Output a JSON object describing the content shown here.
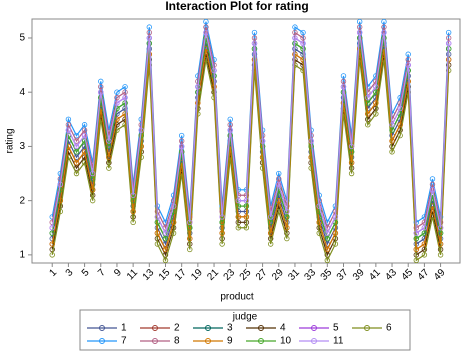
{
  "chart_data": {
    "type": "line",
    "title": "Interaction Plot for rating",
    "x_label": "product",
    "y_label": "rating",
    "legend_title": "judge",
    "x": [
      1,
      2,
      3,
      4,
      5,
      6,
      7,
      8,
      9,
      10,
      11,
      12,
      13,
      14,
      15,
      16,
      17,
      18,
      19,
      20,
      21,
      22,
      23,
      24,
      25,
      26,
      27,
      28,
      29,
      30,
      31,
      32,
      33,
      34,
      35,
      36,
      37,
      38,
      39,
      40,
      41,
      42,
      43,
      44,
      45,
      46,
      47,
      48,
      49,
      50
    ],
    "xlim": [
      -1.5,
      51.4
    ],
    "xticks": [
      1,
      3,
      5,
      7,
      9,
      11,
      13,
      15,
      17,
      19,
      21,
      23,
      25,
      27,
      29,
      31,
      33,
      35,
      37,
      39,
      41,
      43,
      45,
      47,
      49
    ],
    "ylim": [
      0.85,
      5.35
    ],
    "yticks": [
      1,
      2,
      3,
      4,
      5
    ],
    "series": [
      {
        "name": "1",
        "color": "#445694",
        "values": [
          1.3,
          2.1,
          3.1,
          2.8,
          3.0,
          2.3,
          3.8,
          2.9,
          3.6,
          3.7,
          1.9,
          3.1,
          4.8,
          1.5,
          1.2,
          1.7,
          2.8,
          1.4,
          3.9,
          4.9,
          4.2,
          1.5,
          3.1,
          1.8,
          1.8,
          4.7,
          2.9,
          1.5,
          2.1,
          1.6,
          4.8,
          4.7,
          2.9,
          1.7,
          1.2,
          1.5,
          3.9,
          2.8,
          4.9,
          3.7,
          3.9,
          4.9,
          3.2,
          3.5,
          4.3,
          1.2,
          1.3,
          2.0,
          1.3,
          4.7
        ]
      },
      {
        "name": "2",
        "color": "#A23A2E",
        "values": [
          1.2,
          2.0,
          3.0,
          2.7,
          2.9,
          2.2,
          3.7,
          2.8,
          3.5,
          3.6,
          1.8,
          3.0,
          4.7,
          1.4,
          1.1,
          1.6,
          2.7,
          1.3,
          3.8,
          4.8,
          4.1,
          1.4,
          3.0,
          1.7,
          1.7,
          4.6,
          2.8,
          1.4,
          2.0,
          1.5,
          4.7,
          4.6,
          2.8,
          1.6,
          1.1,
          1.4,
          3.8,
          2.7,
          4.8,
          3.6,
          3.8,
          4.8,
          3.1,
          3.4,
          4.2,
          1.1,
          1.2,
          1.9,
          1.2,
          4.6
        ]
      },
      {
        "name": "3",
        "color": "#01665E",
        "values": [
          1.4,
          2.2,
          3.2,
          2.9,
          3.1,
          2.4,
          3.9,
          3.0,
          3.7,
          3.8,
          2.0,
          3.2,
          4.9,
          1.6,
          1.3,
          1.8,
          2.9,
          1.5,
          4.0,
          5.0,
          4.3,
          1.6,
          3.2,
          1.9,
          1.9,
          4.8,
          3.0,
          1.6,
          2.2,
          1.7,
          4.9,
          4.8,
          3.0,
          1.8,
          1.3,
          1.6,
          4.0,
          2.9,
          5.0,
          3.8,
          4.0,
          5.0,
          3.3,
          3.6,
          4.4,
          1.3,
          1.4,
          2.1,
          1.4,
          4.8
        ]
      },
      {
        "name": "4",
        "color": "#543005",
        "values": [
          1.1,
          1.9,
          2.9,
          2.6,
          2.8,
          2.1,
          3.6,
          2.7,
          3.4,
          3.5,
          1.7,
          2.9,
          4.6,
          1.3,
          1.0,
          1.5,
          2.6,
          1.2,
          3.7,
          4.7,
          4.0,
          1.3,
          2.9,
          1.6,
          1.6,
          4.5,
          2.7,
          1.3,
          1.9,
          1.4,
          4.6,
          4.5,
          2.7,
          1.5,
          1.0,
          1.3,
          3.7,
          2.6,
          4.7,
          3.5,
          3.7,
          4.7,
          3.0,
          3.3,
          4.1,
          1.0,
          1.1,
          1.8,
          1.1,
          4.5
        ]
      },
      {
        "name": "5",
        "color": "#9D3CDB",
        "values": [
          1.5,
          2.3,
          3.3,
          3.0,
          3.2,
          2.5,
          4.0,
          3.1,
          3.8,
          3.9,
          2.1,
          3.3,
          5.0,
          1.7,
          1.4,
          1.9,
          3.0,
          1.6,
          4.1,
          5.1,
          4.4,
          1.7,
          3.3,
          2.0,
          2.0,
          4.9,
          3.1,
          1.7,
          2.3,
          1.8,
          5.0,
          4.9,
          3.1,
          1.9,
          1.4,
          1.7,
          4.1,
          3.0,
          5.1,
          3.9,
          4.1,
          5.1,
          3.4,
          3.7,
          4.5,
          1.4,
          1.5,
          2.2,
          1.5,
          4.9
        ]
      },
      {
        "name": "6",
        "color": "#7F8E1F",
        "values": [
          1.0,
          1.8,
          2.8,
          2.5,
          2.7,
          2.0,
          3.5,
          2.6,
          3.3,
          3.4,
          1.6,
          2.8,
          4.5,
          1.2,
          0.9,
          1.4,
          2.5,
          1.1,
          3.6,
          4.6,
          3.9,
          1.2,
          2.8,
          1.5,
          1.5,
          4.4,
          2.6,
          1.2,
          1.8,
          1.3,
          4.5,
          4.4,
          2.6,
          1.4,
          0.9,
          1.2,
          3.6,
          2.5,
          4.6,
          3.4,
          3.6,
          4.6,
          2.9,
          3.2,
          4.0,
          0.9,
          1.0,
          1.7,
          1.0,
          4.4
        ]
      },
      {
        "name": "7",
        "color": "#2597FA",
        "values": [
          1.7,
          2.5,
          3.5,
          3.2,
          3.4,
          2.7,
          4.2,
          3.3,
          4.0,
          4.1,
          2.3,
          3.5,
          5.2,
          1.9,
          1.6,
          2.1,
          3.2,
          1.8,
          4.3,
          5.3,
          4.6,
          1.9,
          3.5,
          2.2,
          2.2,
          5.1,
          3.3,
          1.9,
          2.5,
          2.0,
          5.2,
          5.1,
          3.3,
          2.1,
          1.6,
          1.9,
          4.3,
          3.2,
          5.3,
          4.1,
          4.3,
          5.3,
          3.6,
          3.9,
          4.7,
          1.6,
          1.7,
          2.4,
          1.7,
          5.1
        ]
      },
      {
        "name": "8",
        "color": "#B26084",
        "values": [
          1.6,
          2.4,
          3.4,
          3.1,
          3.3,
          2.6,
          4.1,
          3.2,
          3.9,
          4.0,
          2.2,
          3.4,
          5.1,
          1.8,
          1.5,
          2.0,
          3.1,
          1.7,
          4.2,
          5.2,
          4.5,
          1.8,
          3.4,
          2.1,
          2.1,
          5.0,
          3.2,
          1.8,
          2.4,
          1.9,
          5.1,
          5.0,
          3.2,
          2.0,
          1.5,
          1.8,
          4.2,
          3.1,
          5.2,
          4.0,
          4.2,
          5.2,
          3.5,
          3.8,
          4.6,
          1.5,
          1.6,
          2.3,
          1.6,
          5.0
        ]
      },
      {
        "name": "9",
        "color": "#D17800",
        "values": [
          1.2,
          2.0,
          3.0,
          2.7,
          2.9,
          2.2,
          3.7,
          2.8,
          3.5,
          3.6,
          1.8,
          3.0,
          4.7,
          1.4,
          1.1,
          1.6,
          2.7,
          1.3,
          3.8,
          4.8,
          4.1,
          1.4,
          3.0,
          1.7,
          1.7,
          4.6,
          2.8,
          1.4,
          2.0,
          1.5,
          4.7,
          4.6,
          2.8,
          1.6,
          1.1,
          1.4,
          3.8,
          2.7,
          4.8,
          3.6,
          3.8,
          4.8,
          3.1,
          3.4,
          4.2,
          1.1,
          1.2,
          1.9,
          1.2,
          4.6
        ]
      },
      {
        "name": "10",
        "color": "#47A82A",
        "values": [
          1.4,
          2.2,
          3.2,
          2.9,
          3.1,
          2.4,
          3.9,
          3.0,
          3.7,
          3.8,
          2.0,
          3.2,
          4.9,
          1.6,
          1.3,
          1.8,
          2.9,
          1.5,
          4.0,
          5.0,
          4.3,
          1.6,
          3.2,
          1.9,
          1.9,
          4.8,
          3.0,
          1.6,
          2.2,
          1.7,
          4.9,
          4.8,
          3.0,
          1.8,
          1.3,
          1.6,
          4.0,
          2.9,
          5.0,
          3.8,
          4.0,
          5.0,
          3.3,
          3.6,
          4.4,
          1.3,
          1.4,
          2.1,
          1.4,
          4.8
        ]
      },
      {
        "name": "11",
        "color": "#B38EF3",
        "values": [
          1.5,
          2.3,
          3.3,
          3.0,
          3.2,
          2.5,
          4.0,
          3.1,
          3.8,
          3.9,
          2.1,
          3.3,
          5.0,
          1.7,
          1.4,
          1.9,
          3.0,
          1.6,
          4.1,
          5.1,
          4.4,
          1.7,
          3.3,
          2.0,
          2.0,
          4.9,
          3.1,
          1.7,
          2.3,
          1.8,
          5.0,
          4.9,
          3.1,
          1.9,
          1.4,
          1.7,
          4.1,
          3.0,
          5.1,
          3.9,
          4.1,
          5.1,
          3.4,
          3.7,
          4.5,
          1.4,
          1.5,
          2.2,
          1.5,
          4.9
        ]
      }
    ]
  }
}
